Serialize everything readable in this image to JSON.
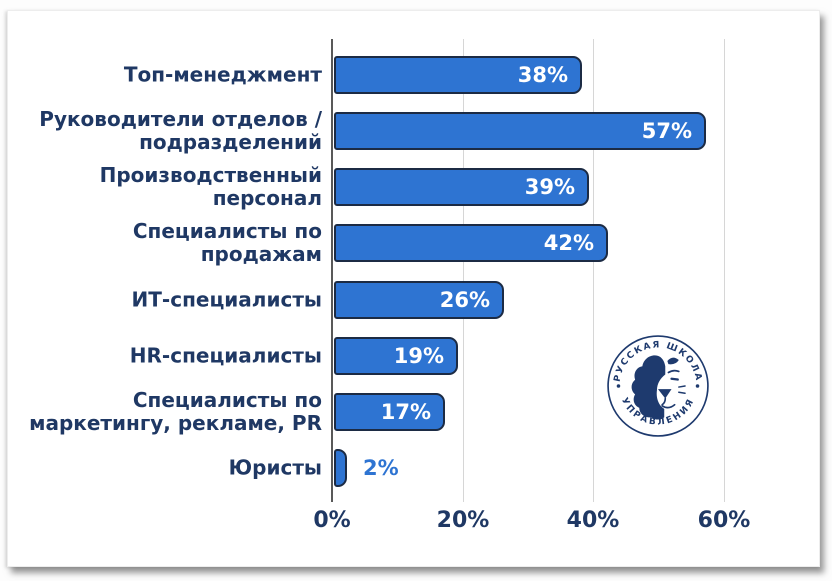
{
  "chart_data": {
    "type": "bar",
    "orientation": "horizontal",
    "title": "",
    "categories": [
      "Топ-менеджмент",
      "Руководители отделов / подразделений",
      "Производственный персонал",
      "Специалисты по продажам",
      "ИТ-специалисты",
      "HR-специалисты",
      "Специалисты по маркетингу, рекламе, PR",
      "Юристы"
    ],
    "categories_display": [
      "Топ-менеджмент",
      "Руководители отделов /\nподразделений",
      "Производственный\nперсонал",
      "Специалисты по\nпродажам",
      "ИТ-специалисты",
      "HR-специалисты",
      "Специалисты по\nмаркетингу, рекламе, PR",
      "Юристы"
    ],
    "values": [
      38,
      57,
      39,
      42,
      26,
      19,
      17,
      2
    ],
    "value_labels": [
      "38%",
      "57%",
      "39%",
      "42%",
      "26%",
      "19%",
      "17%",
      "2%"
    ],
    "value_label_positions": [
      "inside",
      "inside",
      "inside",
      "inside",
      "inside",
      "inside",
      "inside",
      "outside"
    ],
    "x_ticks": [
      {
        "label": "0%",
        "value": 0
      },
      {
        "label": "20%",
        "value": 20
      },
      {
        "label": "40%",
        "value": 40
      },
      {
        "label": "60%",
        "value": 60
      }
    ],
    "xlim": [
      0,
      70
    ],
    "grid": "vertical",
    "legend": "none",
    "colors": {
      "bar_fill": "#2e74d2",
      "bar_border": "#1c2b44",
      "category_label": "#1f3864",
      "tick_label": "#1f3864",
      "value_inside": "#ffffff",
      "value_outside": "#2e74d2",
      "gridline": "#d6d6d6",
      "axis_line": "#595959"
    }
  },
  "logo": {
    "name": "Русская школа управления",
    "top_text": "РУССКАЯ ШКОЛА",
    "bottom_text": "УПРАВЛЕНИЯ",
    "color": "#1e3a6e"
  }
}
